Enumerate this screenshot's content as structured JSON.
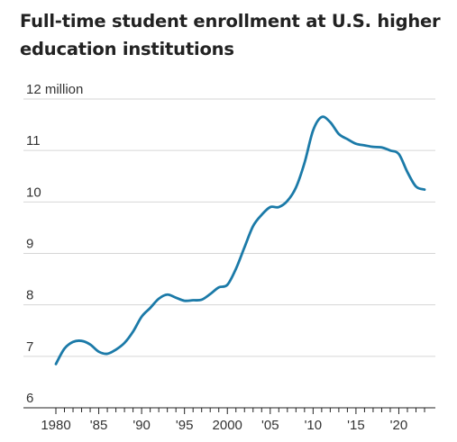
{
  "chart_data": {
    "type": "line",
    "title": "Full-time student enrollment at U.S. higher education institutions",
    "xlabel": "",
    "ylabel": "",
    "unit": "million",
    "xlim": [
      1980,
      2023
    ],
    "ylim": [
      6,
      12
    ],
    "grid": true,
    "legend": "none",
    "line_color": "#1b7aa8",
    "grid_color": "#d6d6d6",
    "axis_color": "#222222",
    "y_ticks": [
      {
        "value": 12,
        "label": "12 million"
      },
      {
        "value": 11,
        "label": "11"
      },
      {
        "value": 10,
        "label": "10"
      },
      {
        "value": 9,
        "label": "9"
      },
      {
        "value": 8,
        "label": "8"
      },
      {
        "value": 7,
        "label": "7"
      },
      {
        "value": 6,
        "label": "6"
      }
    ],
    "x_ticks": [
      {
        "value": 1980,
        "label": "1980"
      },
      {
        "value": 1985,
        "label": "'85"
      },
      {
        "value": 1990,
        "label": "'90"
      },
      {
        "value": 1995,
        "label": "'95"
      },
      {
        "value": 2000,
        "label": "2000"
      },
      {
        "value": 2005,
        "label": "'05"
      },
      {
        "value": 2010,
        "label": "'10"
      },
      {
        "value": 2015,
        "label": "'15"
      },
      {
        "value": 2020,
        "label": "'20"
      }
    ],
    "series": [
      {
        "x": [
          1980,
          1981,
          1982,
          1983,
          1984,
          1985,
          1986,
          1987,
          1988,
          1989,
          1990,
          1991,
          1992,
          1993,
          1994,
          1995,
          1996,
          1997,
          1998,
          1999,
          2000,
          2001,
          2002,
          2003,
          2004,
          2005,
          2006,
          2007,
          2008,
          2009,
          2010,
          2011,
          2012,
          2013,
          2014,
          2015,
          2016,
          2017,
          2018,
          2019,
          2020,
          2021,
          2022,
          2023
        ],
        "values": [
          6.85,
          7.15,
          7.28,
          7.3,
          7.23,
          7.09,
          7.05,
          7.13,
          7.26,
          7.48,
          7.77,
          7.94,
          8.12,
          8.2,
          8.14,
          8.08,
          8.09,
          8.1,
          8.21,
          8.34,
          8.39,
          8.7,
          9.12,
          9.53,
          9.75,
          9.9,
          9.9,
          10.02,
          10.28,
          10.76,
          11.39,
          11.65,
          11.55,
          11.32,
          11.22,
          11.13,
          11.1,
          11.07,
          11.06,
          11.0,
          10.93,
          10.58,
          10.3,
          10.24
        ]
      }
    ]
  }
}
